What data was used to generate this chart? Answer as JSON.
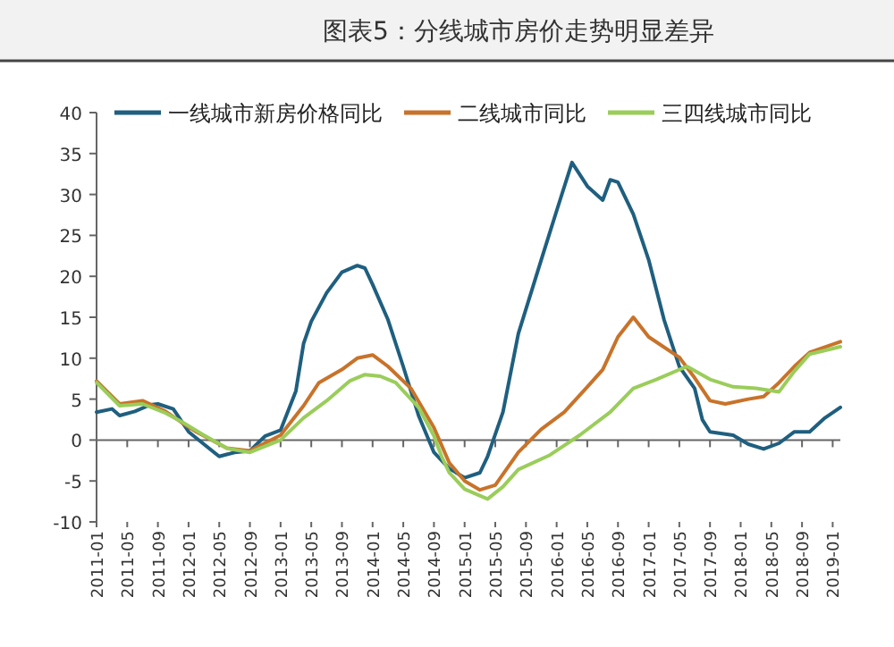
{
  "chart_data": {
    "type": "line",
    "title": "图表5：分线城市房价走势明显差异",
    "xlim": [
      "2011-01",
      "2019-02"
    ],
    "ylim": [
      -10,
      40
    ],
    "yticks": [
      -10,
      -5,
      0,
      5,
      10,
      15,
      20,
      25,
      30,
      35,
      40
    ],
    "xticks": [
      "2011-01",
      "2011-05",
      "2011-09",
      "2012-01",
      "2012-05",
      "2012-09",
      "2013-01",
      "2013-05",
      "2013-09",
      "2014-01",
      "2014-05",
      "2014-09",
      "2015-01",
      "2015-05",
      "2015-09",
      "2016-01",
      "2016-05",
      "2016-09",
      "2017-01",
      "2017-05",
      "2017-09",
      "2018-01",
      "2018-05",
      "2018-09",
      "2019-01"
    ],
    "legend": "top",
    "series": [
      {
        "name": "一线城市新房价格同比",
        "color": "#1f5f7f",
        "x": [
          "2011-01",
          "2011-03",
          "2011-04",
          "2011-06",
          "2011-08",
          "2011-09",
          "2011-11",
          "2012-01",
          "2012-03",
          "2012-05",
          "2012-07",
          "2012-09",
          "2012-11",
          "2013-01",
          "2013-03",
          "2013-04",
          "2013-05",
          "2013-07",
          "2013-09",
          "2013-11",
          "2013-12",
          "2014-01",
          "2014-03",
          "2014-05",
          "2014-07",
          "2014-09",
          "2014-11",
          "2015-01",
          "2015-03",
          "2015-04",
          "2015-06",
          "2015-08",
          "2015-11",
          "2016-01",
          "2016-03",
          "2016-05",
          "2016-07",
          "2016-08",
          "2016-09",
          "2016-11",
          "2017-01",
          "2017-03",
          "2017-05",
          "2017-07",
          "2017-08",
          "2017-09",
          "2017-12",
          "2018-02",
          "2018-04",
          "2018-06",
          "2018-08",
          "2018-10",
          "2018-12",
          "2019-02"
        ],
        "values": [
          3.4,
          3.8,
          3.0,
          3.5,
          4.3,
          4.4,
          3.8,
          1.0,
          -0.5,
          -2.0,
          -1.5,
          -1.3,
          0.5,
          1.2,
          6,
          11.8,
          14.5,
          18,
          20.5,
          21.3,
          21,
          19,
          14.7,
          9,
          3,
          -1.5,
          -3.5,
          -4.6,
          -4,
          -2,
          3.4,
          13,
          22,
          28,
          33.9,
          31,
          29.3,
          31.8,
          31.5,
          27.6,
          22,
          14.7,
          9,
          6.3,
          2.5,
          1.0,
          0.6,
          -0.5,
          -1.1,
          -0.4,
          1.0,
          1.0,
          2.7,
          4.0
        ]
      },
      {
        "name": "二线城市同比",
        "color": "#c8732a",
        "x": [
          "2011-01",
          "2011-04",
          "2011-07",
          "2011-10",
          "2011-12",
          "2012-02",
          "2012-06",
          "2012-09",
          "2013-01",
          "2013-04",
          "2013-06",
          "2013-09",
          "2013-11",
          "2014-01",
          "2014-03",
          "2014-06",
          "2014-09",
          "2014-11",
          "2015-01",
          "2015-03",
          "2015-05",
          "2015-08",
          "2015-11",
          "2016-02",
          "2016-05",
          "2016-07",
          "2016-09",
          "2016-11",
          "2017-01",
          "2017-05",
          "2017-07",
          "2017-09",
          "2017-11",
          "2018-02",
          "2018-04",
          "2018-06",
          "2018-08",
          "2018-10",
          "2019-02"
        ],
        "values": [
          7.2,
          4.4,
          4.8,
          3.5,
          2.2,
          1.0,
          -1.0,
          -1.3,
          0.6,
          4.2,
          7,
          8.6,
          10,
          10.4,
          9,
          6.3,
          1.5,
          -2.8,
          -5,
          -6.1,
          -5.5,
          -1.5,
          1.3,
          3.4,
          6.5,
          8.6,
          12.6,
          15,
          12.6,
          10.1,
          7.6,
          4.8,
          4.4,
          5.0,
          5.3,
          7,
          9,
          10.7,
          12
        ]
      },
      {
        "name": "三四线城市同比",
        "color": "#9acd5a",
        "x": [
          "2011-01",
          "2011-04",
          "2011-07",
          "2011-10",
          "2011-12",
          "2012-03",
          "2012-06",
          "2012-09",
          "2013-01",
          "2013-04",
          "2013-07",
          "2013-10",
          "2013-12",
          "2014-02",
          "2014-04",
          "2014-07",
          "2014-09",
          "2014-10",
          "2014-11",
          "2015-01",
          "2015-04",
          "2015-06",
          "2015-08",
          "2015-12",
          "2016-04",
          "2016-08",
          "2016-11",
          "2017-02",
          "2017-06",
          "2017-09",
          "2017-12",
          "2018-03",
          "2018-06",
          "2018-08",
          "2018-10",
          "2019-02"
        ],
        "values": [
          7.0,
          4.2,
          4.4,
          3.3,
          2.3,
          0.6,
          -1.0,
          -1.5,
          0,
          2.7,
          4.8,
          7.2,
          8,
          7.8,
          7.0,
          4.0,
          0.5,
          -2,
          -4,
          -6,
          -7.2,
          -5.7,
          -3.6,
          -1.9,
          0.6,
          3.4,
          6.3,
          7.4,
          9,
          7.4,
          6.5,
          6.3,
          5.9,
          8.4,
          10.5,
          11.4
        ]
      }
    ]
  }
}
